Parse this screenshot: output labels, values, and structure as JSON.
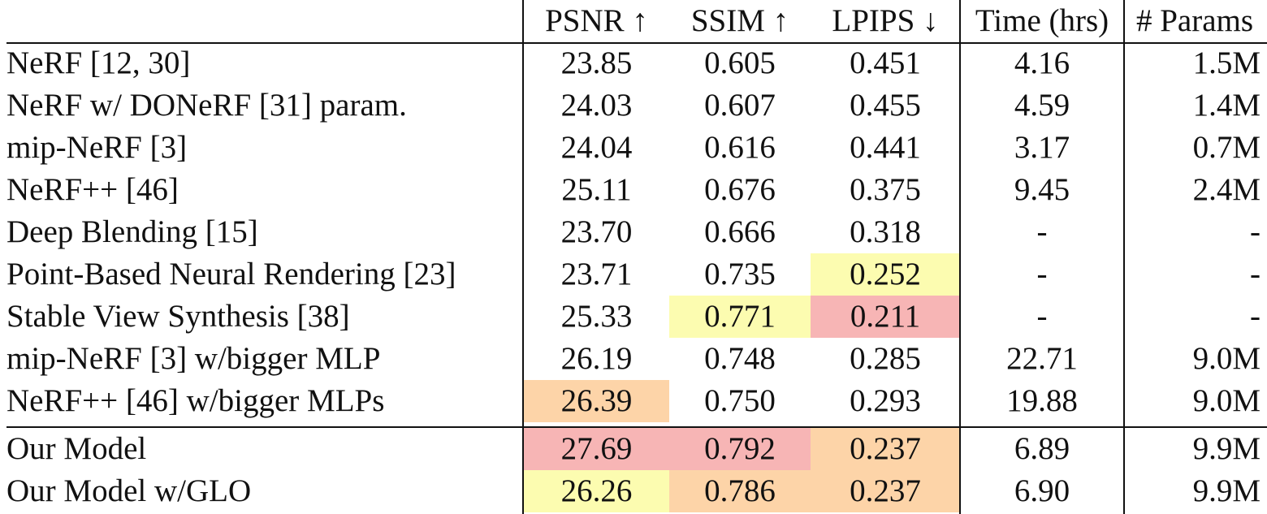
{
  "table": {
    "headers": {
      "method": "",
      "psnr": "PSNR ↑",
      "ssim": "SSIM ↑",
      "lpips": "LPIPS ↓",
      "time": "Time (hrs)",
      "params": "# Params"
    },
    "rows": [
      {
        "method": "NeRF [12, 30]",
        "psnr": "23.85",
        "ssim": "0.605",
        "lpips": "0.451",
        "time": "4.16",
        "params": "1.5M"
      },
      {
        "method": "NeRF w/ DONeRF [31] param.",
        "psnr": "24.03",
        "ssim": "0.607",
        "lpips": "0.455",
        "time": "4.59",
        "params": "1.4M"
      },
      {
        "method": "mip-NeRF [3]",
        "psnr": "24.04",
        "ssim": "0.616",
        "lpips": "0.441",
        "time": "3.17",
        "params": "0.7M"
      },
      {
        "method": "NeRF++ [46]",
        "psnr": "25.11",
        "ssim": "0.676",
        "lpips": "0.375",
        "time": "9.45",
        "params": "2.4M"
      },
      {
        "method": "Deep Blending [15]",
        "psnr": "23.70",
        "ssim": "0.666",
        "lpips": "0.318",
        "time": "-",
        "params": "-"
      },
      {
        "method": "Point-Based Neural Rendering [23]",
        "psnr": "23.71",
        "ssim": "0.735",
        "lpips": "0.252",
        "time": "-",
        "params": "-"
      },
      {
        "method": "Stable View Synthesis [38]",
        "psnr": "25.33",
        "ssim": "0.771",
        "lpips": "0.211",
        "time": "-",
        "params": "-"
      },
      {
        "method": "mip-NeRF [3] w/bigger MLP",
        "psnr": "26.19",
        "ssim": "0.748",
        "lpips": "0.285",
        "time": "22.71",
        "params": "9.0M"
      },
      {
        "method": "NeRF++ [46] w/bigger MLPs",
        "psnr": "26.39",
        "ssim": "0.750",
        "lpips": "0.293",
        "time": "19.88",
        "params": "9.0M"
      },
      {
        "method": "Our Model",
        "psnr": "27.69",
        "ssim": "0.792",
        "lpips": "0.237",
        "time": "6.89",
        "params": "9.9M"
      },
      {
        "method": "Our Model w/GLO",
        "psnr": "26.26",
        "ssim": "0.786",
        "lpips": "0.237",
        "time": "6.90",
        "params": "9.9M"
      }
    ],
    "highlight_colors": {
      "first": "#f7b5b5",
      "second": "#fdd4a8",
      "third": "#fcfcb0"
    }
  }
}
